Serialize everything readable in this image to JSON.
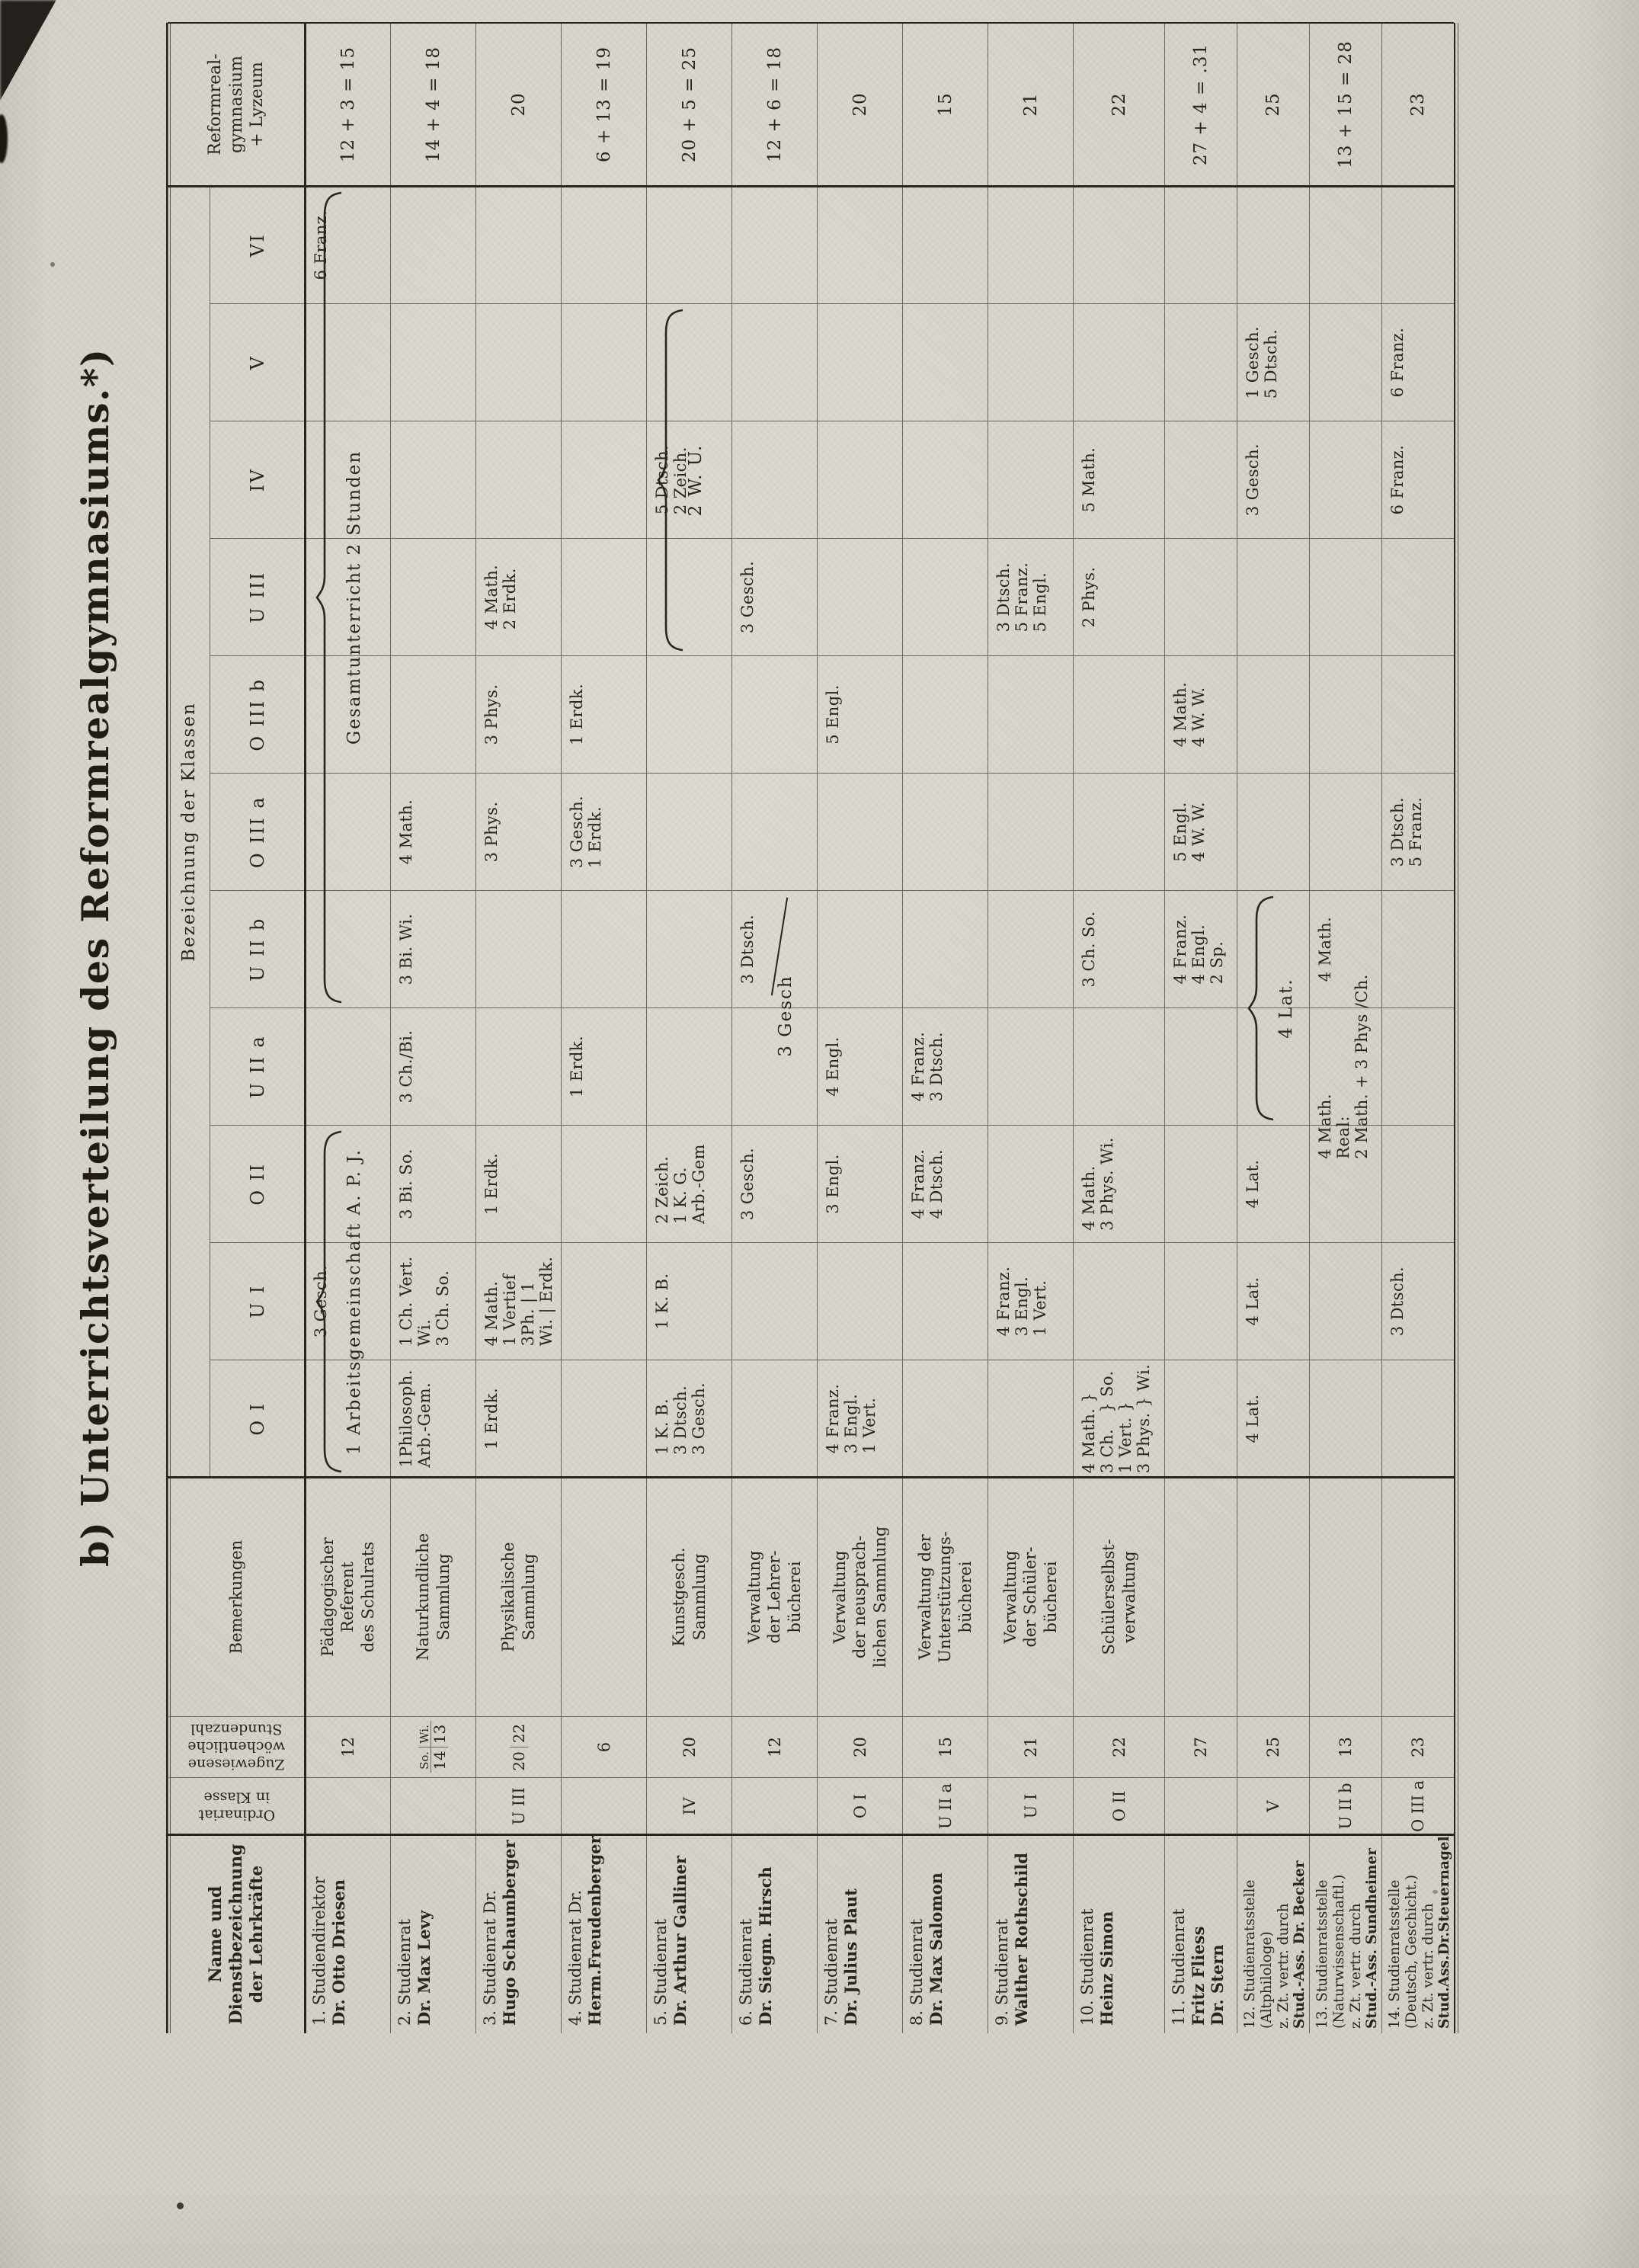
{
  "page": {
    "title": "b) Unterrichtsverteilung des Reformrealgymnasiums.*)"
  },
  "table": {
    "name_header_lines": [
      "Name und",
      "Dienstbezeichnung",
      "der Lehrkräfte"
    ],
    "ordinariat_header_lines": [
      "Ordinariat",
      "in Klasse"
    ],
    "stunden_header_lines": [
      "Zugewiesene",
      "wöchentliche",
      "Stundenzahl"
    ],
    "bemerkungen_header": "Bemerkungen",
    "klassen_header": "Bezeichnung der Klassen",
    "totals_header_lines": [
      "Reformreal-",
      "gymnasium",
      "+ Lyzeum"
    ],
    "classes": [
      "O I",
      "U I",
      "O II",
      "U II a",
      "U II b",
      "O III a",
      "O III b",
      "U III",
      "IV",
      "V",
      "VI"
    ],
    "teachers": [
      {
        "no": "1",
        "name_lines": [
          "1. Studiendirektor",
          "Dr. Otto Driesen"
        ],
        "bold_lines": [
          1
        ],
        "ordinariat": "",
        "stunden": "12",
        "bemerkung_lines": [
          "Pädagogischer",
          "Referent",
          "des Schulrats"
        ],
        "cells": {
          "U I": [
            "3 Gesch."
          ],
          "VI": [
            "6 Franz."
          ]
        },
        "total": "12 + 3 = 15"
      },
      {
        "no": "2",
        "name_lines": [
          "2. Studienrat",
          "Dr. Max Levy"
        ],
        "bold_lines": [
          1
        ],
        "ordinariat": "",
        "stunden_split": {
          "top": [
            "So.",
            "Wi."
          ],
          "bottom": [
            "14",
            "13"
          ]
        },
        "bemerkung_lines": [
          "Naturkundliche",
          "Sammlung"
        ],
        "cells": {
          "O I": [
            "1Philosoph.",
            "Arb.-Gem."
          ],
          "U I": [
            "1 Ch. Vert.",
            "Wi.",
            "3 Ch. So."
          ],
          "O II": [
            "3 Bi. So."
          ],
          "U II a": [
            "3 Ch./Bi."
          ],
          "U II b": [
            "3 Bi. Wi."
          ],
          "O III a": [
            "4 Math."
          ]
        },
        "total": "14 + 4 = 18"
      },
      {
        "no": "3",
        "name_lines": [
          "3. Studienrat Dr.",
          "Hugo Schaumberger"
        ],
        "bold_lines": [
          1
        ],
        "ordinariat": "U III",
        "stunden_pair": [
          "20",
          "22"
        ],
        "bemerkung_lines": [
          "Physikalische",
          "Sammlung"
        ],
        "cells": {
          "O I": [
            "1 Erdk."
          ],
          "U I": [
            "4 Math.",
            "1 Vertief",
            "3Ph. | 1",
            "Wi. | Erdk."
          ],
          "O II": [
            "1 Erdk."
          ],
          "O III a": [
            "3 Phys."
          ],
          "O III b": [
            "3 Phys."
          ],
          "U III": [
            "4 Math.",
            "2 Erdk."
          ]
        },
        "total": "20"
      },
      {
        "no": "4",
        "name_lines": [
          "4. Studienrat Dr.",
          "Herm.Freudenberger"
        ],
        "bold_lines": [
          1
        ],
        "ordinariat": "",
        "stunden": "6",
        "bemerkung_lines": [],
        "cells": {
          "U II a": [
            "1 Erdk."
          ],
          "O III a": [
            "3 Gesch.",
            "1 Erdk."
          ],
          "O III b": [
            "1 Erdk."
          ]
        },
        "total": "6 + 13 = 19"
      },
      {
        "no": "5",
        "name_lines": [
          "5. Studienrat",
          "Dr. Arthur Galliner"
        ],
        "bold_lines": [
          1
        ],
        "ordinariat": "IV",
        "stunden": "20",
        "bemerkung_lines": [
          "Kunstgesch.",
          "Sammlung"
        ],
        "cells": {
          "O I": [
            "1 K. B.",
            "3 Dtsch.",
            "3 Gesch."
          ],
          "U I": [
            "1 K. B."
          ],
          "O II": [
            "2 Zeich.",
            "1 K. G.",
            "Arb.-Gem"
          ],
          "IV": [
            "5 Dtsch.",
            "2 Zeich."
          ]
        },
        "total": "20 + 5 = 25"
      },
      {
        "no": "6",
        "name_lines": [
          "6. Studienrat",
          "Dr. Siegm. Hirsch"
        ],
        "bold_lines": [
          1
        ],
        "ordinariat": "",
        "stunden": "12",
        "bemerkung_lines": [
          "Verwaltung",
          "der Lehrer-",
          "bücherei"
        ],
        "cells": {
          "O II": [
            "3 Gesch."
          ],
          "U II b": [
            "3 Dtsch."
          ],
          "U III": [
            "3 Gesch."
          ]
        },
        "total": "12 + 6 = 18"
      },
      {
        "no": "7",
        "name_lines": [
          "7. Studienrat",
          "Dr. Julius Plaut"
        ],
        "bold_lines": [
          1
        ],
        "ordinariat": "O I",
        "stunden": "20",
        "bemerkung_lines": [
          "Verwaltung",
          "der neusprach-",
          "lichen Sammlung"
        ],
        "cells": {
          "O I": [
            "4 Franz.",
            "3 Engl.",
            "1 Vert."
          ],
          "O II": [
            "3 Engl."
          ],
          "U II a": [
            "4 Engl."
          ],
          "O III b": [
            "5 Engl."
          ]
        },
        "total": "20"
      },
      {
        "no": "8",
        "name_lines": [
          "8. Studienrat",
          "Dr. Max Salomon"
        ],
        "bold_lines": [
          1
        ],
        "ordinariat": "U II a",
        "stunden": "15",
        "bemerkung_lines": [
          "Verwaltung der",
          "Unterstützungs-",
          "bücherei"
        ],
        "cells": {
          "O II": [
            "4 Franz.",
            "4 Dtsch."
          ],
          "U II a": [
            "4 Franz.",
            "3 Dtsch."
          ]
        },
        "total": "15"
      },
      {
        "no": "9",
        "name_lines": [
          "9. Studienrat",
          "Walther Rothschild"
        ],
        "bold_lines": [
          1
        ],
        "ordinariat": "U I",
        "stunden": "21",
        "bemerkung_lines": [
          "Verwaltung",
          "der Schüler-",
          "bücherei"
        ],
        "cells": {
          "U I": [
            "4 Franz.",
            "3 Engl.",
            "1 Vert."
          ],
          "U III": [
            "3 Dtsch.",
            "5 Franz.",
            "5 Engl."
          ]
        },
        "total": "21"
      },
      {
        "no": "10",
        "name_lines": [
          "10. Studienrat",
          "Heinz Simon"
        ],
        "bold_lines": [
          1
        ],
        "ordinariat": "O II",
        "stunden": "22",
        "bemerkung_lines": [
          "Schülerselbst-",
          "verwaltung"
        ],
        "cells": {
          "O I": [
            "4 Math. }",
            "3 Ch.   } So.",
            "1 Vert. }",
            "3 Phys. } Wi."
          ],
          "O II": [
            "4 Math.",
            "3 Phys. Wi."
          ],
          "U II b": [
            "3 Ch. So."
          ],
          "U III": [
            "2 Phys."
          ],
          "IV": [
            "5 Math."
          ]
        },
        "total": "22"
      },
      {
        "no": "11",
        "name_lines": [
          "11. Studienrat",
          "Fritz Fliess",
          "Dr. Stern"
        ],
        "bold_lines": [
          1,
          2
        ],
        "ordinariat": "",
        "stunden": "27",
        "bemerkung_lines": [],
        "cells": {
          "U II b": [
            "4 Franz.",
            "4 Engl.",
            "2 Sp."
          ],
          "O III a": [
            "5 Engl.",
            "4 W. W."
          ],
          "O III b": [
            "4 Math.",
            "4 W. W."
          ]
        },
        "total": "27 + 4 = .31"
      },
      {
        "no": "12",
        "name_lines": [
          "12. Studienratsstelle",
          "(Altphilologe)",
          "z. Zt. vertr. durch",
          "Stud.-Ass. Dr. Becker"
        ],
        "bold_lines": [
          3
        ],
        "ordinariat": "V",
        "stunden": "25",
        "bemerkung_lines": [],
        "cells": {
          "O I": [
            "4 Lat."
          ],
          "U I": [
            "4 Lat."
          ],
          "O II": [
            "4 Lat."
          ],
          "IV": [
            "3 Gesch."
          ],
          "V": [
            "1 Gesch.",
            "5 Dtsch."
          ]
        },
        "total": "25"
      },
      {
        "no": "13",
        "name_lines": [
          "13. Studienratsstelle",
          "(Naturwissenschaftl.)",
          "z. Zt. vertr. durch",
          "Stud.-Ass. Sundheimer"
        ],
        "bold_lines": [
          3
        ],
        "ordinariat": "U II b",
        "stunden": "13",
        "bemerkung_lines": [],
        "cells": {
          "U II a": [
            "4 Math.",
            "Real:",
            "2 Math. + 3 Phys /Ch."
          ],
          "U II b": [
            "4 Math."
          ]
        },
        "total": "13 + 15 = 28"
      },
      {
        "no": "14",
        "name_lines": [
          "14. Studienratsstelle",
          "(Deutsch, Geschicht.)",
          "z. Zt. vertr. durch",
          "Stud.Ass.Dr.Steuernagel"
        ],
        "bold_lines": [
          3
        ],
        "ordinariat": "O III a",
        "stunden": "23",
        "bemerkung_lines": [],
        "cells": {
          "U I": [
            "3 Dtsch."
          ],
          "O III a": [
            "3 Dtsch.",
            "5 Franz."
          ],
          "IV": [
            "6 Franz."
          ],
          "V": [
            "6 Franz."
          ]
        },
        "total": "23"
      }
    ],
    "annotations": [
      {
        "teacher": 1,
        "type": "brace",
        "from": "U II b",
        "to": "VI",
        "text": "Gesamtunterricht 2 Stunden"
      },
      {
        "teacher": 1,
        "type": "brace",
        "from": "O I",
        "to": "O II",
        "text": "1 Arbeitsgemeinschaft A. P. J."
      },
      {
        "teacher": 5,
        "type": "brace",
        "from": "U III",
        "to": "V",
        "text": "2 W. U."
      },
      {
        "teacher": 6,
        "type": "stroke",
        "from": "U II a",
        "to": "U II b",
        "text": "3 Gesch"
      },
      {
        "teacher": 12,
        "type": "brace",
        "from": "U II a",
        "to": "U II b",
        "text": "4 Lat."
      }
    ]
  }
}
